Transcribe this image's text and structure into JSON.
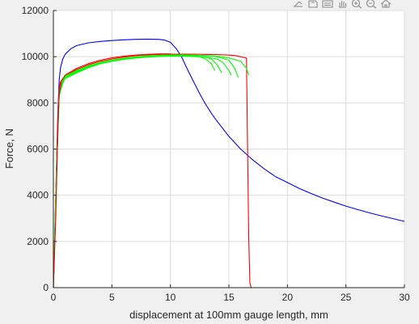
{
  "toolbar": {
    "icons": [
      "brush-icon",
      "export-icon",
      "datacursor-icon",
      "pan-icon",
      "zoom-in-icon",
      "zoom-out-icon",
      "home-icon"
    ]
  },
  "chart_data": {
    "type": "line",
    "title": "",
    "xlabel": "displacement at 100mm gauge length, mm",
    "ylabel": "Force, N",
    "xlim": [
      0,
      30
    ],
    "ylim": [
      0,
      12000
    ],
    "xticks": [
      0,
      5,
      10,
      15,
      20,
      25,
      30
    ],
    "yticks": [
      0,
      2000,
      4000,
      6000,
      8000,
      10000,
      12000
    ],
    "grid": true,
    "legend": "none",
    "series": [
      {
        "color": "#0000ff",
        "x": [
          0,
          0.1,
          0.2,
          0.3,
          0.4,
          0.5,
          0.6,
          0.8,
          1,
          1.5,
          2,
          3,
          4,
          5,
          6,
          7,
          8,
          9,
          9.5,
          10,
          10.5,
          11,
          11.5,
          12,
          12.5,
          13,
          13.5,
          14,
          15,
          16,
          17,
          18,
          19,
          20,
          21,
          22,
          23,
          24,
          25,
          26,
          27,
          28,
          29,
          30
        ],
        "y": [
          0,
          2000,
          4000,
          6000,
          7800,
          9000,
          9500,
          9900,
          10100,
          10350,
          10480,
          10600,
          10660,
          10700,
          10730,
          10750,
          10760,
          10750,
          10720,
          10620,
          10350,
          9950,
          9400,
          8900,
          8400,
          7950,
          7550,
          7200,
          6550,
          6000,
          5550,
          5150,
          4800,
          4550,
          4300,
          4080,
          3880,
          3700,
          3530,
          3380,
          3240,
          3110,
          2990,
          2870
        ]
      },
      {
        "color": "#ff0000",
        "x": [
          0,
          0.1,
          0.2,
          0.3,
          0.4,
          0.5,
          0.6,
          0.8,
          1,
          2,
          3,
          4,
          5,
          6,
          7,
          8,
          9,
          10,
          11,
          12,
          13,
          14,
          15,
          15.5,
          16,
          16.5,
          16.6,
          16.7,
          16.8,
          16.9,
          17.3
        ],
        "y": [
          0,
          1800,
          3600,
          5600,
          7600,
          8600,
          8900,
          9050,
          9150,
          9450,
          9650,
          9800,
          9900,
          9980,
          10040,
          10080,
          10100,
          10110,
          10110,
          10110,
          10100,
          10090,
          10070,
          10050,
          10000,
          9940,
          6000,
          2000,
          200,
          0,
          0
        ]
      },
      {
        "color": "#00ff00",
        "x": [
          0,
          0.3,
          0.5,
          0.8,
          1,
          2,
          3,
          4,
          5,
          6,
          7,
          8,
          9,
          10,
          11,
          12,
          12.5,
          13,
          13.5,
          13.8
        ],
        "y": [
          0,
          5500,
          8500,
          8950,
          9150,
          9400,
          9600,
          9750,
          9850,
          9930,
          9990,
          10030,
          10060,
          10070,
          10070,
          10040,
          10000,
          9900,
          9700,
          9400
        ]
      },
      {
        "color": "#00ff00",
        "x": [
          0,
          0.3,
          0.5,
          0.8,
          1,
          2,
          3,
          4,
          5,
          6,
          7,
          8,
          9,
          10,
          11,
          12,
          13,
          13.5,
          14,
          14.4
        ],
        "y": [
          0,
          5300,
          8400,
          8900,
          9100,
          9350,
          9560,
          9720,
          9830,
          9910,
          9970,
          10010,
          10040,
          10050,
          10050,
          10030,
          9980,
          9900,
          9650,
          9300
        ]
      },
      {
        "color": "#00ff00",
        "x": [
          0,
          0.3,
          0.5,
          0.8,
          1,
          2,
          3,
          4,
          5,
          6,
          7,
          8,
          9,
          10,
          11,
          12,
          13,
          14,
          14.5,
          15,
          15.2
        ],
        "y": [
          0,
          5400,
          8300,
          8850,
          9050,
          9300,
          9520,
          9690,
          9800,
          9880,
          9940,
          9980,
          10010,
          10020,
          10020,
          10010,
          9980,
          9900,
          9750,
          9400,
          9200
        ]
      },
      {
        "color": "#00ff00",
        "x": [
          0,
          0.3,
          0.5,
          0.8,
          1,
          2,
          3,
          4,
          5,
          6,
          7,
          8,
          9,
          10,
          11,
          12,
          13,
          14,
          15,
          15.5,
          15.8
        ],
        "y": [
          0,
          5600,
          8450,
          8950,
          9150,
          9380,
          9570,
          9730,
          9850,
          9930,
          9990,
          10030,
          10060,
          10080,
          10080,
          10070,
          10050,
          10000,
          9850,
          9500,
          9100
        ]
      },
      {
        "color": "#00ff00",
        "x": [
          0,
          0.3,
          0.5,
          0.8,
          1,
          2,
          3,
          4,
          5,
          6,
          7,
          8,
          9,
          10,
          11,
          12,
          13,
          14,
          15,
          16,
          16.5,
          16.7
        ],
        "y": [
          0,
          5500,
          8400,
          8900,
          9100,
          9330,
          9530,
          9700,
          9820,
          9900,
          9960,
          10000,
          10030,
          10050,
          10060,
          10060,
          10050,
          10020,
          9950,
          9800,
          9500,
          9200
        ]
      },
      {
        "color": "#ff0000",
        "x": [
          0,
          0.2,
          0.4,
          0.5,
          0.7,
          1,
          2,
          3,
          4,
          5,
          6,
          7,
          8,
          9,
          10
        ],
        "y": [
          0,
          3000,
          7200,
          8400,
          8950,
          9200,
          9500,
          9700,
          9850,
          9950,
          10020,
          10070,
          10100,
          10120,
          10120
        ]
      }
    ]
  }
}
